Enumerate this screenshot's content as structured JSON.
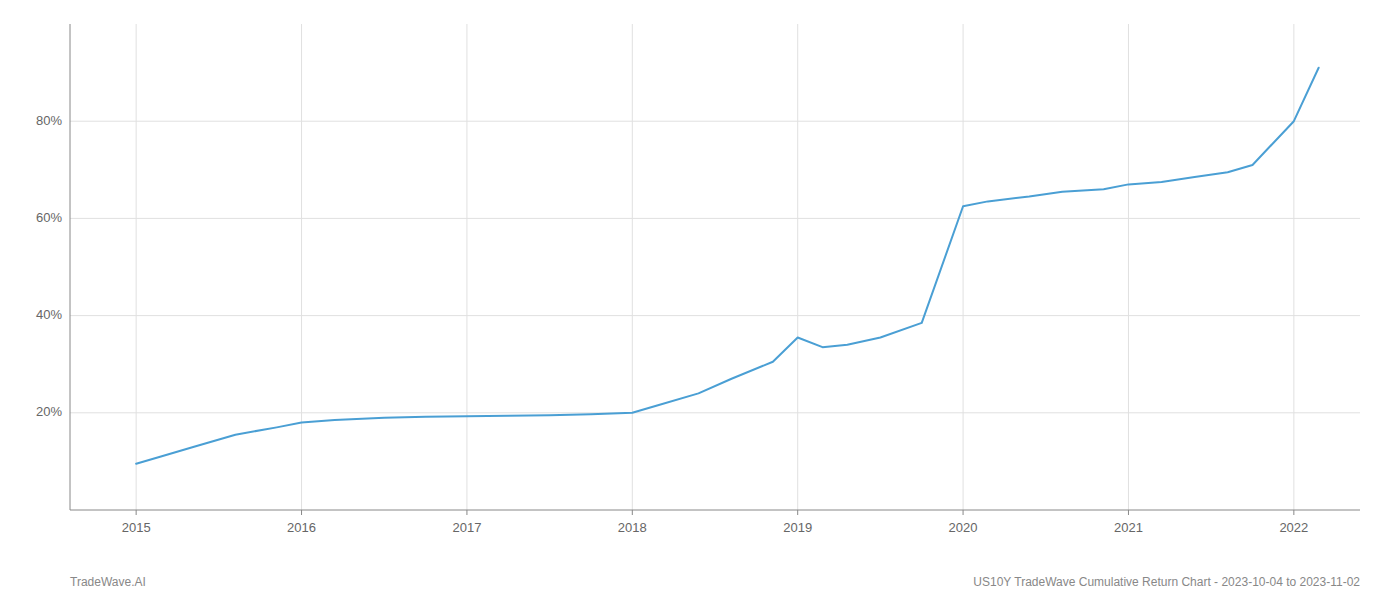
{
  "chart_data": {
    "type": "line",
    "x": [
      2015.0,
      2015.15,
      2015.35,
      2015.6,
      2015.85,
      2016.0,
      2016.2,
      2016.5,
      2016.75,
      2017.0,
      2017.25,
      2017.5,
      2017.75,
      2018.0,
      2018.15,
      2018.4,
      2018.6,
      2018.85,
      2019.0,
      2019.15,
      2019.3,
      2019.5,
      2019.75,
      2020.0,
      2020.15,
      2020.4,
      2020.6,
      2020.85,
      2021.0,
      2021.2,
      2021.4,
      2021.6,
      2021.75,
      2022.0,
      2022.15
    ],
    "values": [
      9.5,
      11.0,
      13.0,
      15.5,
      17.0,
      18.0,
      18.5,
      19.0,
      19.2,
      19.3,
      19.4,
      19.5,
      19.7,
      20.0,
      21.5,
      24.0,
      27.0,
      30.5,
      35.5,
      33.5,
      34.0,
      35.5,
      38.5,
      62.5,
      63.5,
      64.5,
      65.5,
      66.0,
      67.0,
      67.5,
      68.5,
      69.5,
      71.0,
      80.0,
      91.0
    ],
    "color": "#4a9fd4",
    "xlim": [
      2014.6,
      2022.4
    ],
    "ylim": [
      0,
      100
    ],
    "xticks": [
      2015,
      2016,
      2017,
      2018,
      2019,
      2020,
      2021,
      2022
    ],
    "yticks": [
      {
        "value": 20,
        "label": "20%"
      },
      {
        "value": 40,
        "label": "40%"
      },
      {
        "value": 60,
        "label": "60%"
      },
      {
        "value": 80,
        "label": "80%"
      }
    ],
    "grid": true,
    "annotations": [
      "TradeWave.AI",
      "US10Y TradeWave Cumulative Return Chart - 2023-10-04 to 2023-11-02"
    ]
  }
}
